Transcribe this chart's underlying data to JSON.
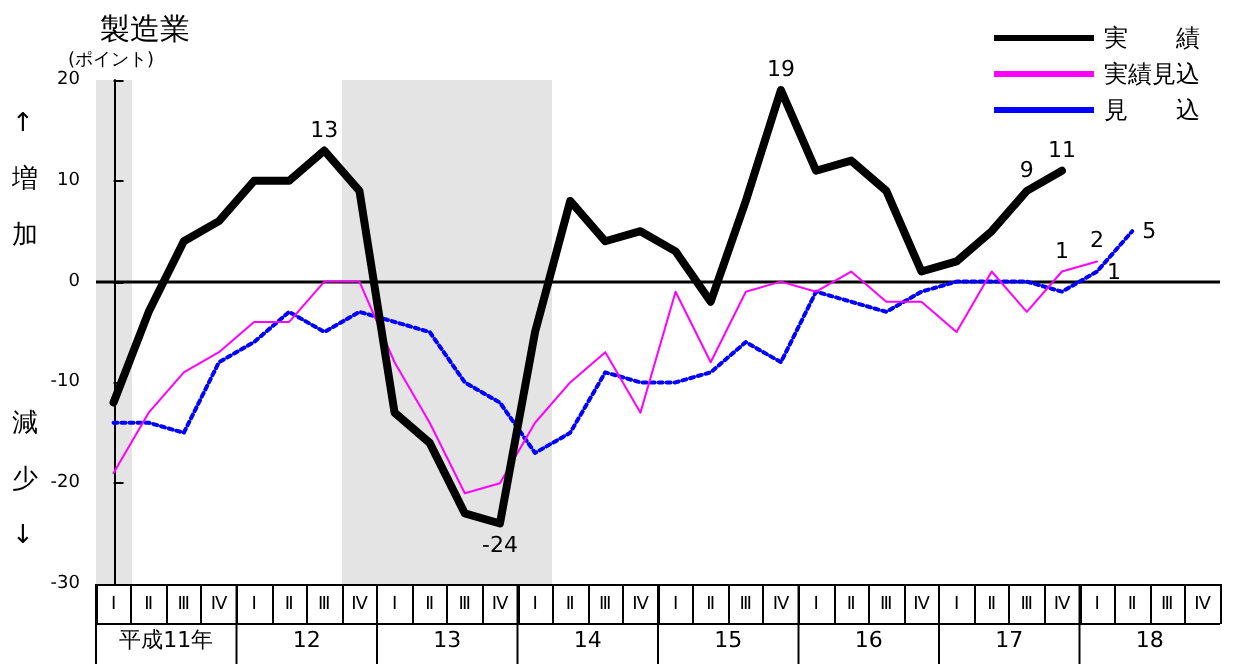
{
  "chart_data": {
    "type": "line",
    "title": "製造業",
    "ylabel": "(ポイント)",
    "categories": [
      "Ⅰ",
      "Ⅱ",
      "Ⅲ",
      "Ⅳ",
      "Ⅰ",
      "Ⅱ",
      "Ⅲ",
      "Ⅳ",
      "Ⅰ",
      "Ⅱ",
      "Ⅲ",
      "Ⅳ",
      "Ⅰ",
      "Ⅱ",
      "Ⅲ",
      "Ⅳ",
      "Ⅰ",
      "Ⅱ",
      "Ⅲ",
      "Ⅳ",
      "Ⅰ",
      "Ⅱ",
      "Ⅲ",
      "Ⅳ",
      "Ⅰ",
      "Ⅱ",
      "Ⅲ",
      "Ⅳ",
      "Ⅰ",
      "Ⅱ",
      "Ⅲ",
      "Ⅳ"
    ],
    "series": [
      {
        "name": "実　　績",
        "color": "#000000",
        "line_style": "solid",
        "values": [
          -12,
          -3,
          4,
          6,
          10,
          10,
          13,
          9,
          -13,
          -16,
          -23,
          -24,
          -5,
          8,
          4,
          5,
          3,
          -2,
          8,
          19,
          11,
          12,
          9,
          1,
          2,
          5,
          9,
          11,
          null,
          null,
          null,
          null
        ],
        "value_labels": [
          null,
          null,
          null,
          null,
          null,
          null,
          "13",
          null,
          null,
          null,
          null,
          "-24",
          null,
          null,
          null,
          null,
          null,
          null,
          null,
          "19",
          null,
          null,
          null,
          null,
          null,
          null,
          "9",
          "11",
          null,
          null,
          null,
          null
        ]
      },
      {
        "name": "実績見込",
        "color": "#ff00ff",
        "line_style": "solid",
        "values": [
          -19,
          -13,
          -9,
          -7,
          -4,
          -4,
          0,
          0,
          -8,
          -14,
          -21,
          -20,
          -14,
          -10,
          -7,
          -13,
          -1,
          -8,
          -1,
          0,
          -1,
          1,
          -2,
          -2,
          -5,
          1,
          -3,
          1,
          2,
          null,
          null,
          null
        ],
        "value_labels": [
          null,
          null,
          null,
          null,
          null,
          null,
          null,
          null,
          null,
          null,
          null,
          null,
          null,
          null,
          null,
          null,
          null,
          null,
          null,
          null,
          null,
          null,
          null,
          null,
          null,
          null,
          null,
          "1",
          "2",
          null,
          null,
          null
        ]
      },
      {
        "name": "見　　込",
        "color": "#0000ff",
        "line_style": "dotted",
        "values": [
          -14,
          -14,
          -15,
          -8,
          -6,
          -3,
          -5,
          -3,
          -4,
          -5,
          -10,
          -12,
          -17,
          -15,
          -9,
          -10,
          -10,
          -9,
          -6,
          -8,
          -1,
          -2,
          -3,
          -1,
          0,
          0,
          0,
          -1,
          1,
          5,
          null,
          null
        ],
        "value_labels": [
          null,
          null,
          null,
          null,
          null,
          null,
          null,
          null,
          null,
          null,
          null,
          null,
          null,
          null,
          null,
          null,
          null,
          null,
          null,
          null,
          null,
          null,
          null,
          null,
          null,
          null,
          null,
          null,
          "1",
          "5",
          null,
          null
        ]
      }
    ],
    "ylim": [
      -30,
      20
    ],
    "yticks": [
      -30,
      -20,
      -10,
      0,
      10,
      20
    ],
    "grid": false,
    "legend": "top right",
    "marker": "none",
    "ref_lines": [
      {
        "axis": "y",
        "value": 0,
        "color": "#000000"
      }
    ],
    "annotations": [
      "↑増加",
      "減少↓",
      "平成11年",
      "12",
      "13",
      "14",
      "15",
      "16",
      "17",
      "18"
    ]
  }
}
